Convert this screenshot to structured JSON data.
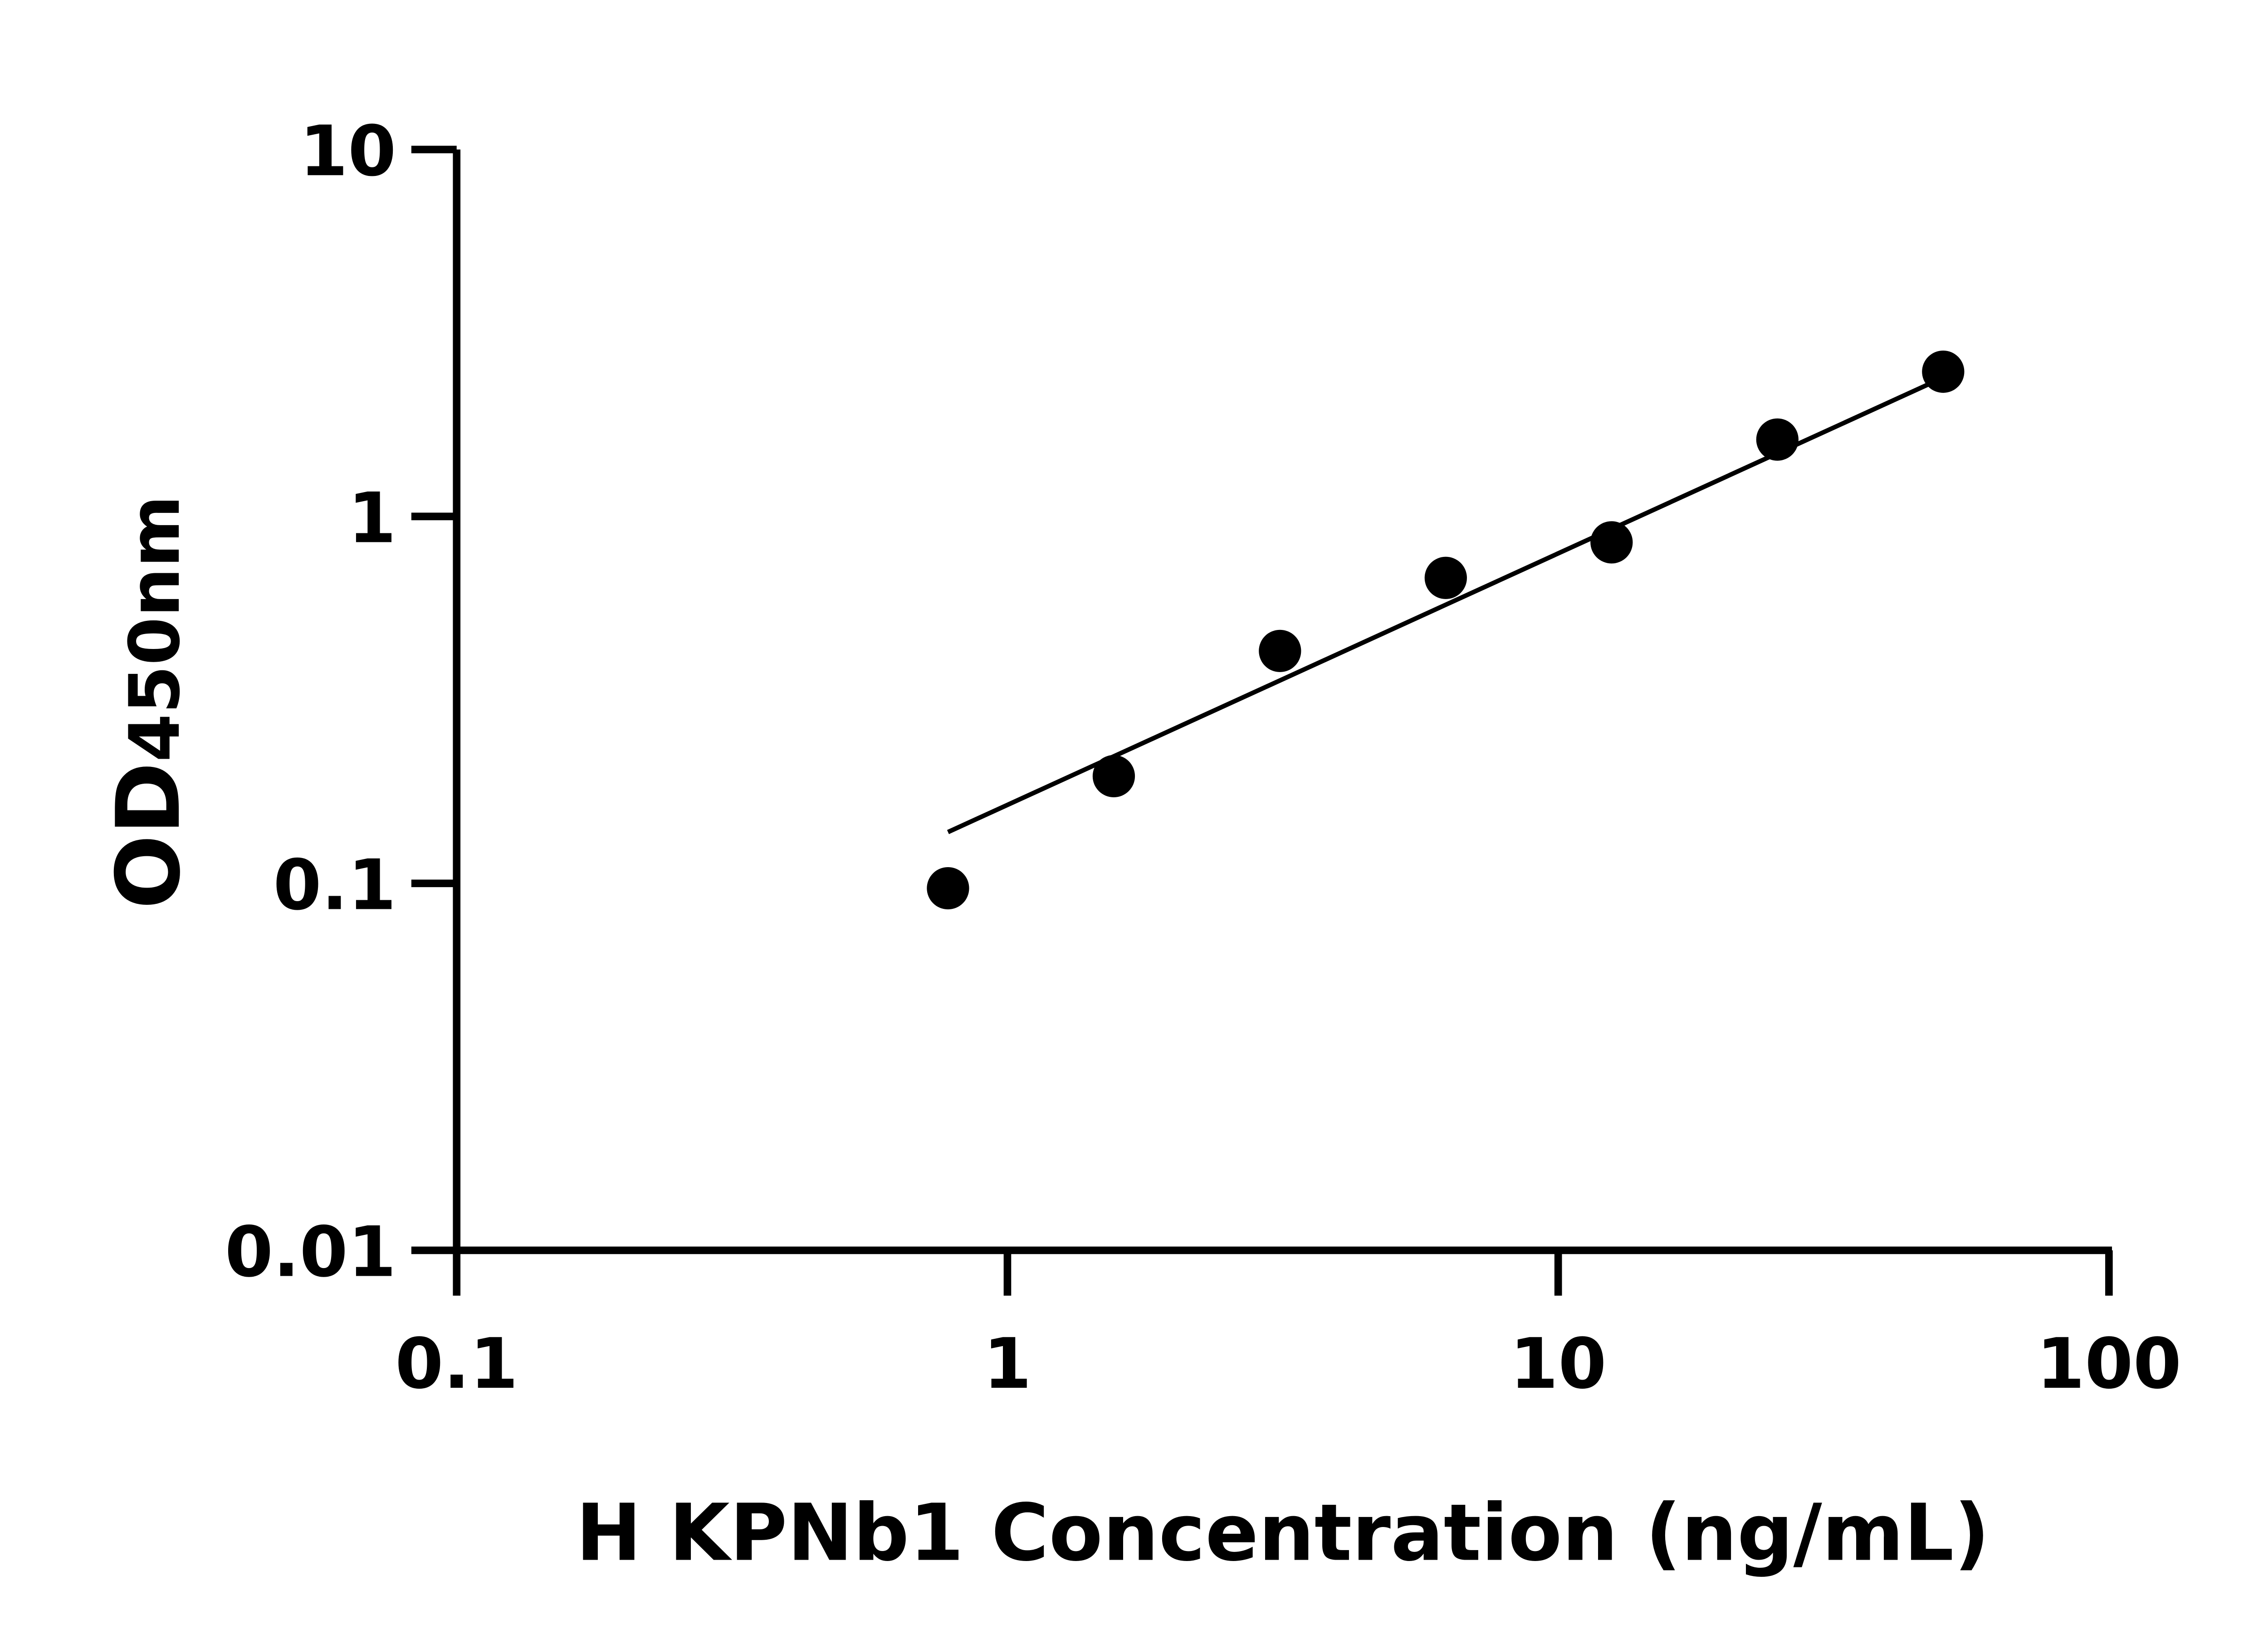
{
  "chart_data": {
    "type": "scatter",
    "title": "",
    "xlabel": "H KPNb1 Concentration (ng/mL)",
    "ylabel_main": "OD",
    "ylabel_sub": "450nm",
    "x_scale": "log",
    "y_scale": "log",
    "xlim": [
      0.1,
      100
    ],
    "ylim": [
      0.01,
      10
    ],
    "x_ticks": [
      0.1,
      1,
      10,
      100
    ],
    "x_tick_labels": [
      "0.1",
      "1",
      "10",
      "100"
    ],
    "y_ticks": [
      0.01,
      0.1,
      1,
      10
    ],
    "y_tick_labels": [
      "0.01",
      "0.1",
      "1",
      "10"
    ],
    "grid": false,
    "legend": "none",
    "points": {
      "x": [
        0.78,
        1.56,
        3.125,
        6.25,
        12.5,
        25,
        50
      ],
      "y": [
        0.097,
        0.196,
        0.43,
        0.68,
        0.85,
        1.62,
        2.48
      ]
    },
    "fit_line": {
      "x": [
        0.78,
        50
      ],
      "y": [
        0.138,
        2.39
      ]
    },
    "colors": {
      "points": "#000000",
      "line": "#000000",
      "axes": "#000000"
    }
  }
}
